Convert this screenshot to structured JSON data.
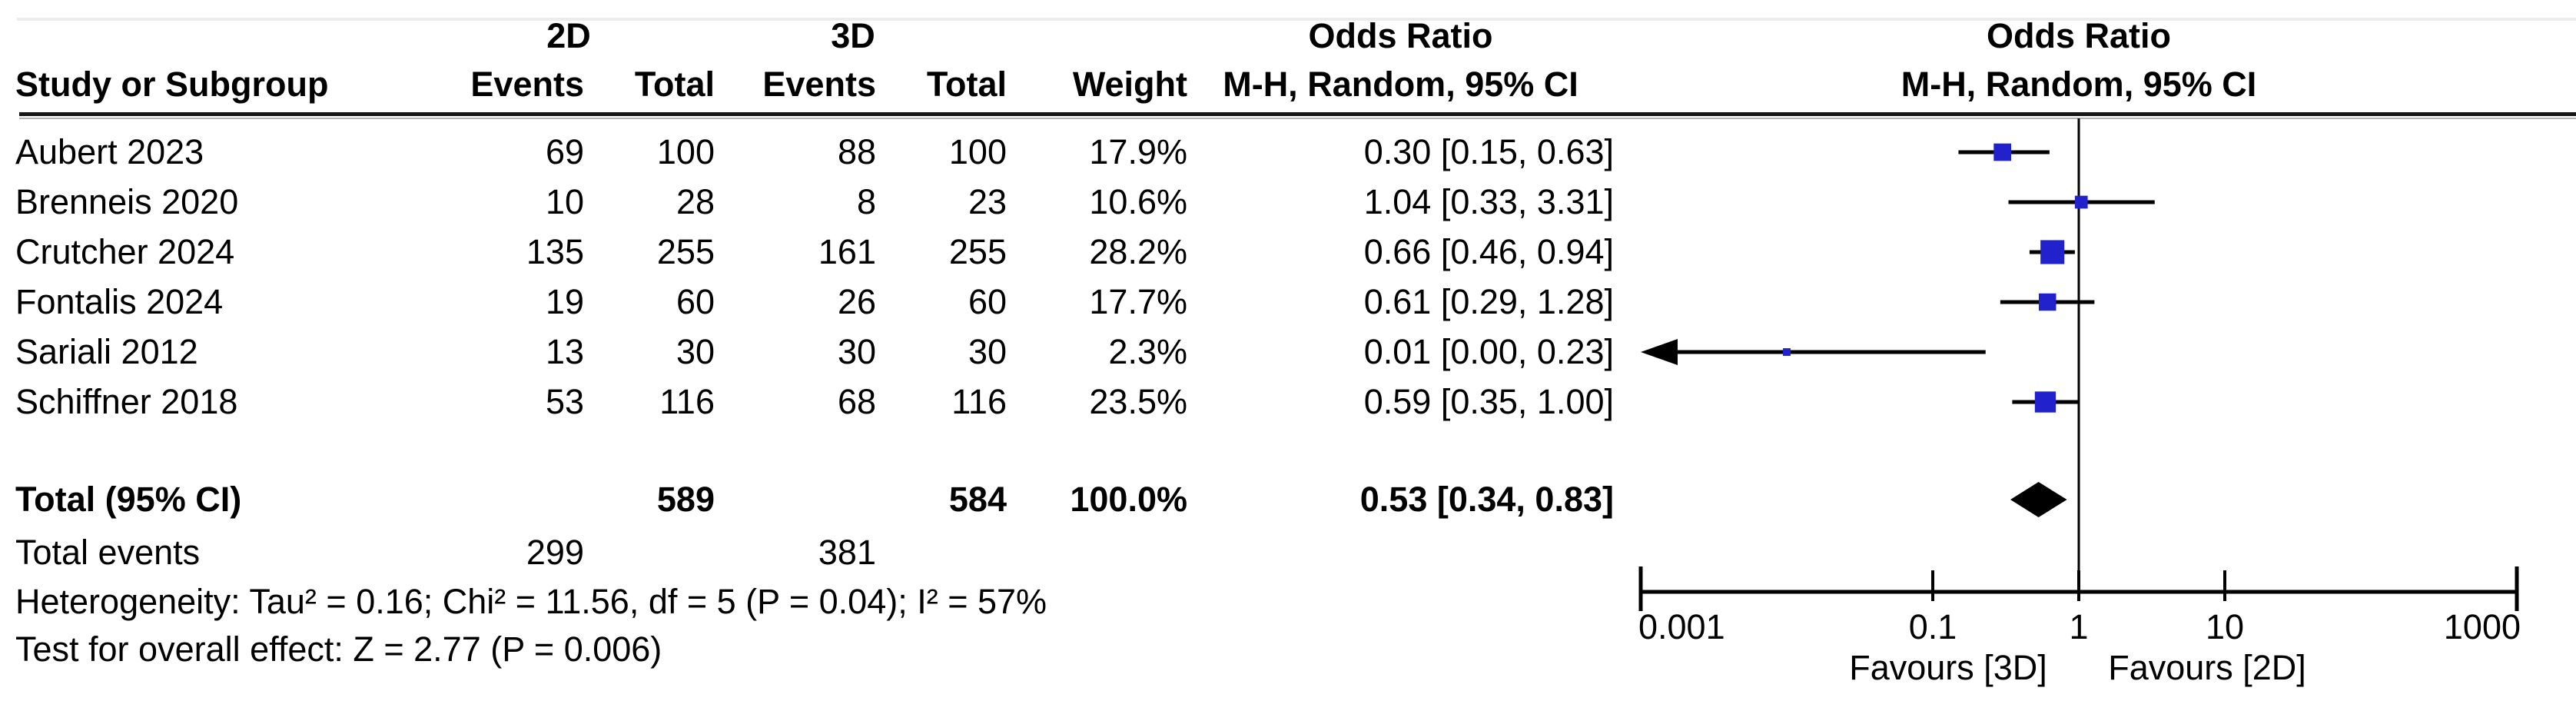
{
  "figure": {
    "header": {
      "study_col": "Study or Subgroup",
      "group_2d": "2D",
      "group_3d": "3D",
      "events_col": "Events",
      "total_col": "Total",
      "weight_col": "Weight",
      "or_title_table": "Odds Ratio",
      "mh_ci_table": "M-H, Random, 95% CI",
      "or_title_plot": "Odds Ratio",
      "mh_ci_plot": "M-H, Random, 95% CI"
    }
  },
  "chart_data": {
    "type": "forest",
    "effect_measure": "Odds Ratio",
    "method": "M-H, Random, 95% CI",
    "x_axis": {
      "scale": "log",
      "min": 0.001,
      "max": 1000,
      "ticks": [
        0.001,
        0.1,
        1,
        10,
        1000
      ],
      "tick_labels": [
        "0.001",
        "0.1",
        "1",
        "10",
        "1000"
      ],
      "ref_line": 1,
      "left_label": "Favours [3D]",
      "right_label": "Favours [2D]"
    },
    "studies": [
      {
        "name": "Aubert 2023",
        "events_2d": 69,
        "total_2d": 100,
        "events_3d": 88,
        "total_3d": 100,
        "weight": 17.9,
        "weight_label": "17.9%",
        "or": 0.3,
        "ci_low": 0.15,
        "ci_high": 0.63,
        "or_label": "0.30 [0.15, 0.63]"
      },
      {
        "name": "Brenneis 2020",
        "events_2d": 10,
        "total_2d": 28,
        "events_3d": 8,
        "total_3d": 23,
        "weight": 10.6,
        "weight_label": "10.6%",
        "or": 1.04,
        "ci_low": 0.33,
        "ci_high": 3.31,
        "or_label": "1.04 [0.33, 3.31]"
      },
      {
        "name": "Crutcher 2024",
        "events_2d": 135,
        "total_2d": 255,
        "events_3d": 161,
        "total_3d": 255,
        "weight": 28.2,
        "weight_label": "28.2%",
        "or": 0.66,
        "ci_low": 0.46,
        "ci_high": 0.94,
        "or_label": "0.66 [0.46, 0.94]"
      },
      {
        "name": "Fontalis 2024",
        "events_2d": 19,
        "total_2d": 60,
        "events_3d": 26,
        "total_3d": 60,
        "weight": 17.7,
        "weight_label": "17.7%",
        "or": 0.61,
        "ci_low": 0.29,
        "ci_high": 1.28,
        "or_label": "0.61 [0.29, 1.28]"
      },
      {
        "name": "Sariali 2012",
        "events_2d": 13,
        "total_2d": 30,
        "events_3d": 30,
        "total_3d": 30,
        "weight": 2.3,
        "weight_label": "2.3%",
        "or": 0.01,
        "ci_low": 0.0,
        "ci_high": 0.23,
        "or_label": "0.01 [0.00, 0.23]"
      },
      {
        "name": "Schiffner 2018",
        "events_2d": 53,
        "total_2d": 116,
        "events_3d": 68,
        "total_3d": 116,
        "weight": 23.5,
        "weight_label": "23.5%",
        "or": 0.59,
        "ci_low": 0.35,
        "ci_high": 1.0,
        "or_label": "0.59 [0.35, 1.00]"
      }
    ],
    "total": {
      "label": "Total (95% CI)",
      "total_2d": 589,
      "total_3d": 584,
      "weight_label": "100.0%",
      "or": 0.53,
      "ci_low": 0.34,
      "ci_high": 0.83,
      "or_label": "0.53 [0.34, 0.83]"
    },
    "total_events": {
      "label": "Total events",
      "events_2d": 299,
      "events_3d": 381
    },
    "footer": {
      "heterogeneity": "Heterogeneity: Tau² = 0.16; Chi² = 11.56, df = 5 (P = 0.04); I² = 57%",
      "overall_effect": "Test for overall effect: Z = 2.77 (P = 0.006)"
    },
    "colors": {
      "marker": "#2222cc",
      "ci_line": "#000000",
      "diamond": "#000000",
      "axis": "#000000"
    }
  }
}
